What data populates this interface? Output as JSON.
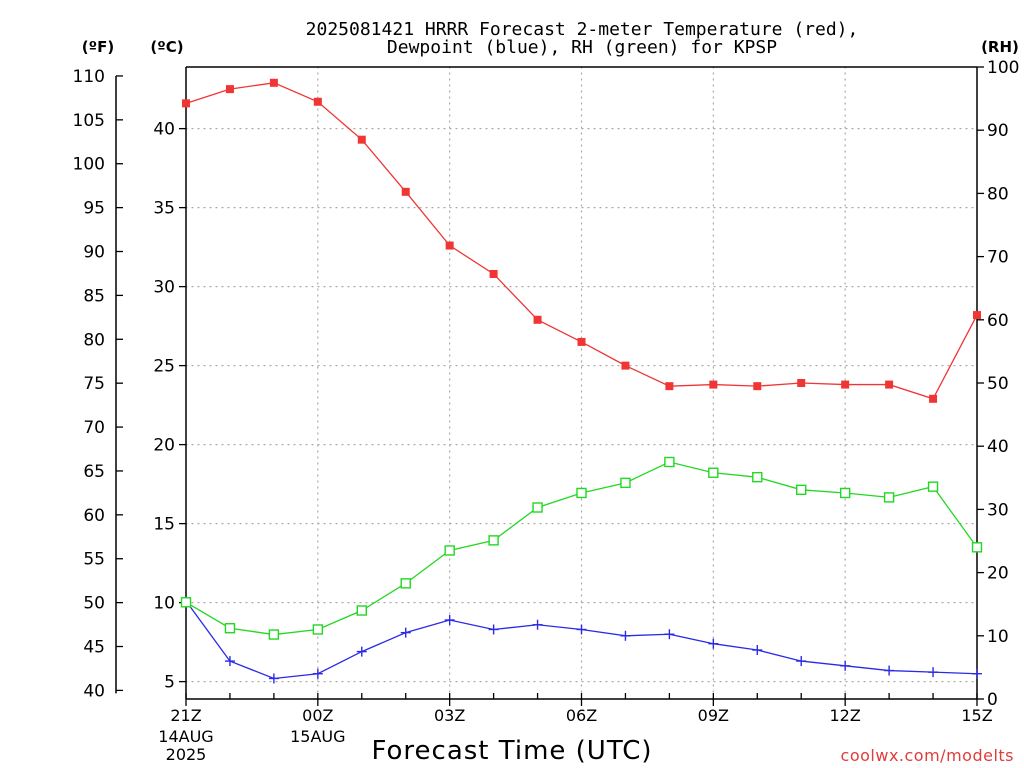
{
  "chart_data": {
    "type": "line",
    "title_line1": "2025081421 HRRR Forecast 2-meter Temperature (red),",
    "title_line2": "Dewpoint (blue), RH (green) for KPSP",
    "xlabel": "Forecast Time (UTC)",
    "unit_labels": {
      "f": "(ºF)",
      "c": "(ºC)",
      "rh": "(RH)"
    },
    "watermark": "coolwx.com/modelts",
    "x_tick_labels": [
      {
        "label": "21Z",
        "sub": [
          "14AUG",
          "2025"
        ]
      },
      {
        "label": "00Z",
        "sub": [
          "15AUG"
        ]
      },
      {
        "label": "03Z",
        "sub": []
      },
      {
        "label": "06Z",
        "sub": []
      },
      {
        "label": "09Z",
        "sub": []
      },
      {
        "label": "12Z",
        "sub": []
      },
      {
        "label": "15Z",
        "sub": []
      }
    ],
    "x_tick_hours": [
      0,
      3,
      6,
      9,
      12,
      15,
      18
    ],
    "x_hours": [
      0,
      1,
      2,
      3,
      4,
      5,
      6,
      7,
      8,
      9,
      10,
      11,
      12,
      13,
      14,
      15,
      16,
      17,
      18
    ],
    "xlim": [
      0,
      18
    ],
    "c_axis": {
      "ylim": [
        3.9,
        43.9
      ],
      "ticks": [
        5,
        10,
        15,
        20,
        25,
        30,
        35,
        40
      ]
    },
    "f_axis": {
      "ticks": [
        40,
        45,
        50,
        55,
        60,
        65,
        70,
        75,
        80,
        85,
        90,
        95,
        100,
        105,
        110
      ]
    },
    "rh_axis": {
      "ylim": [
        0,
        100
      ],
      "ticks": [
        0,
        10,
        20,
        30,
        40,
        50,
        60,
        70,
        80,
        90,
        100
      ]
    },
    "grid": true,
    "series": [
      {
        "key": "temp",
        "color": "#f03535",
        "marker": "filled-square",
        "axis": "c",
        "values": [
          41.6,
          42.5,
          42.9,
          41.7,
          39.3,
          36.0,
          32.6,
          30.8,
          27.9,
          26.5,
          25.0,
          23.7,
          23.8,
          23.7,
          23.9,
          23.8,
          23.8,
          22.9,
          28.2
        ]
      },
      {
        "key": "dewpoint",
        "color": "#2a2ae6",
        "marker": "plus",
        "axis": "c",
        "values": [
          10.1,
          6.3,
          5.2,
          5.5,
          6.9,
          8.1,
          8.9,
          8.3,
          8.6,
          8.3,
          7.9,
          8.0,
          7.4,
          7.0,
          6.3,
          6.0,
          5.7,
          5.6,
          5.5
        ]
      },
      {
        "key": "rh",
        "color": "#22d822",
        "marker": "open-square",
        "axis": "rh",
        "values": [
          15.3,
          11.2,
          10.2,
          11.0,
          14.0,
          18.3,
          23.5,
          25.1,
          30.3,
          32.6,
          34.2,
          37.5,
          35.8,
          35.1,
          33.1,
          32.6,
          31.9,
          33.6,
          24.0
        ]
      }
    ]
  }
}
